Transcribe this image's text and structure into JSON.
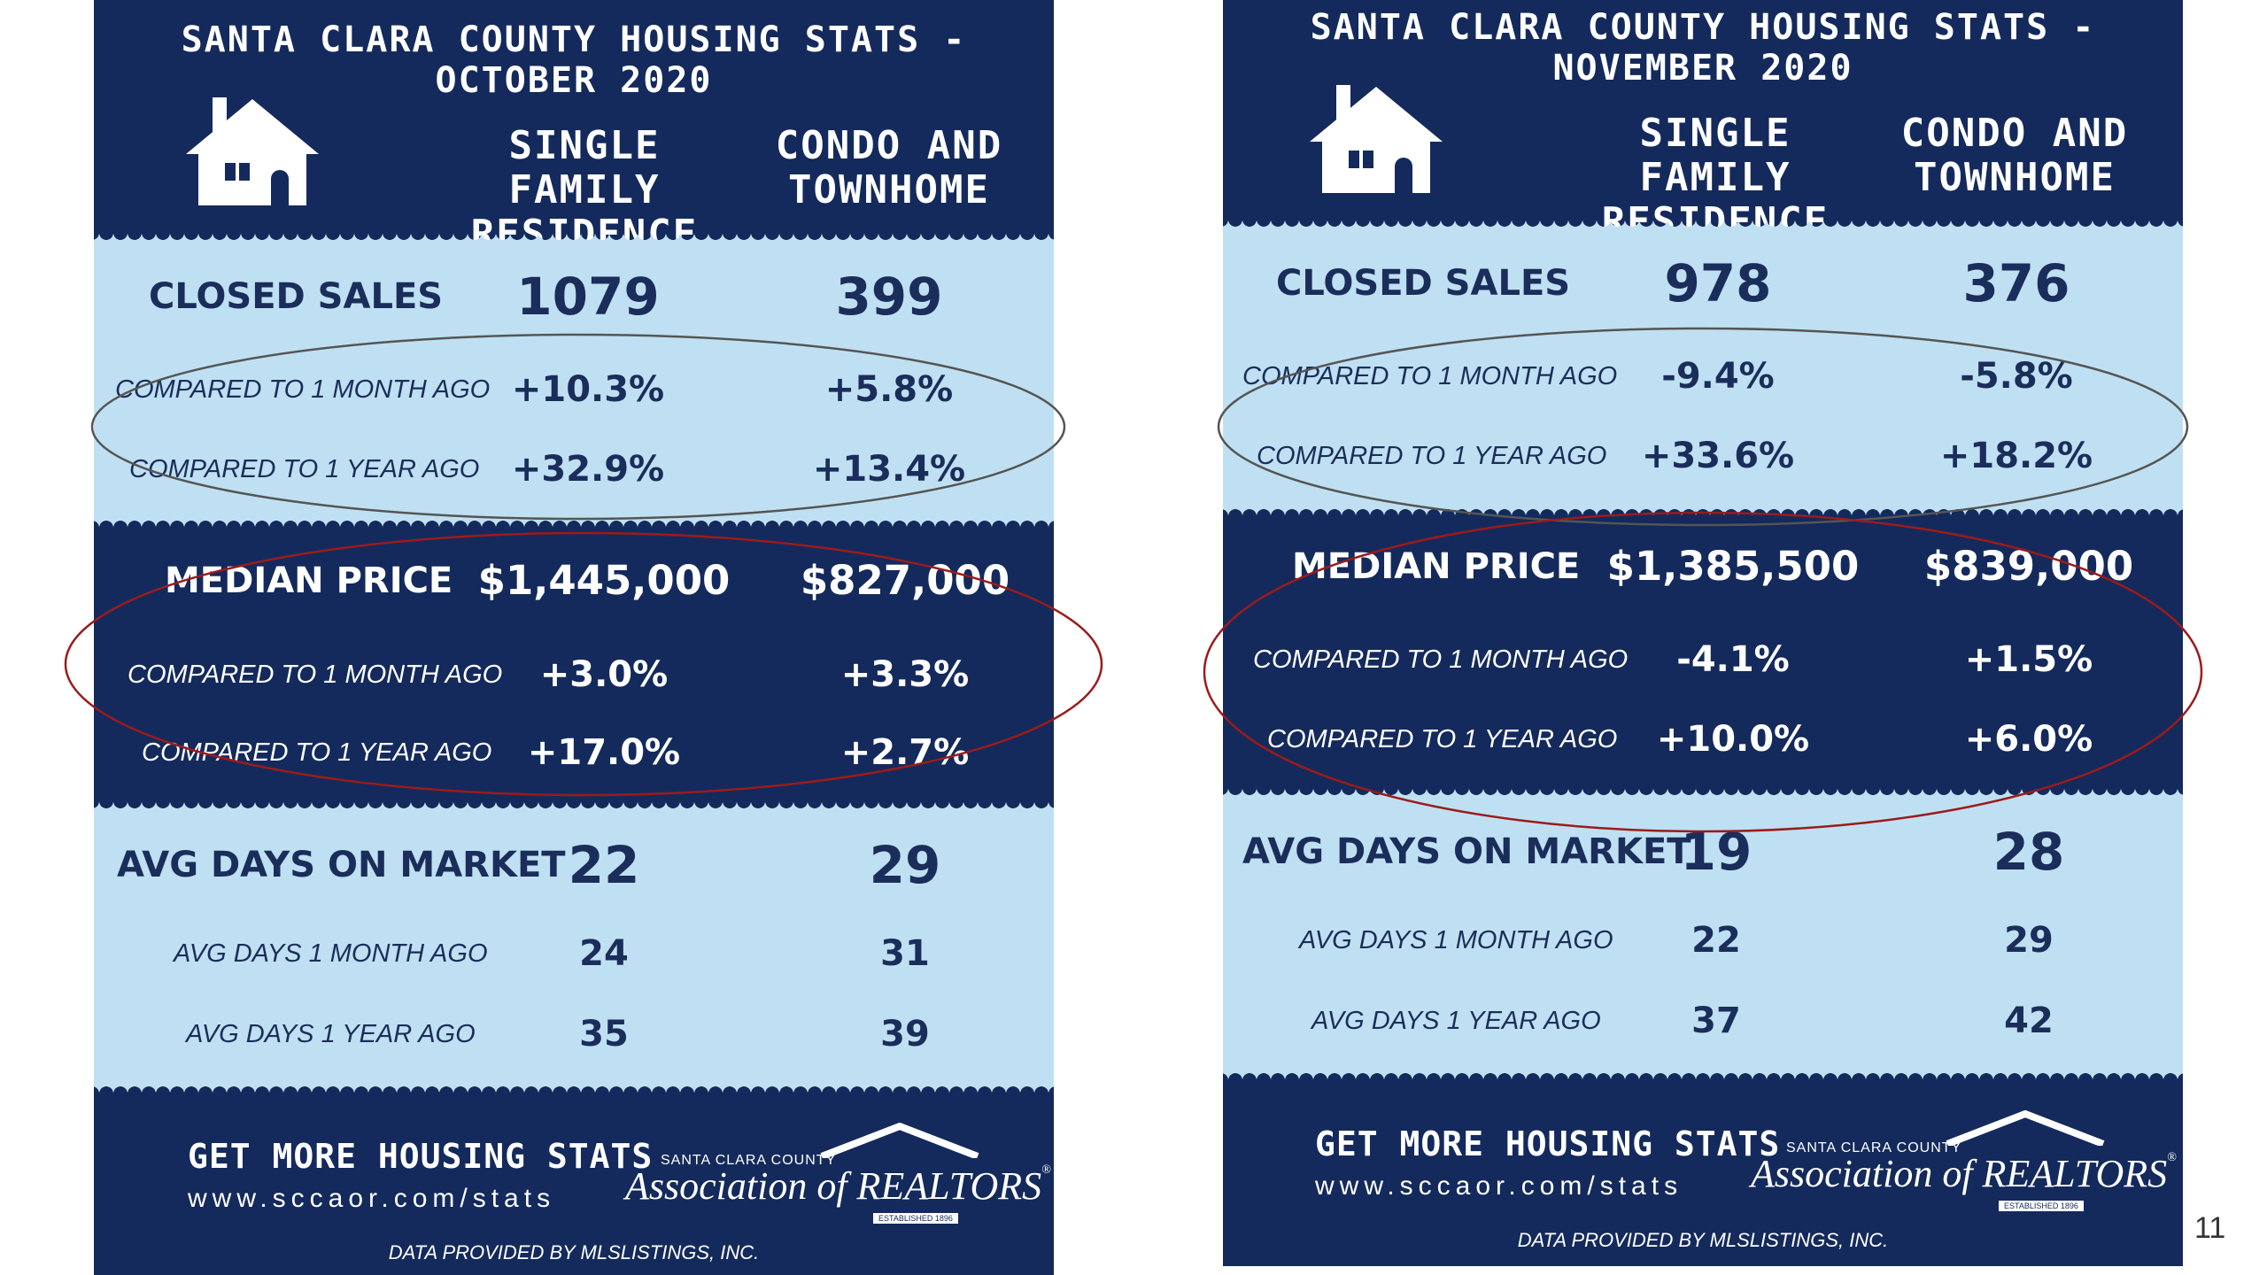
{
  "october": {
    "title": "SANTA CLARA COUNTY HOUSING STATS - OCTOBER 2020",
    "col_sfr": "SINGLE FAMILY\nRESIDENCE",
    "col_condo": "CONDO AND\nTOWNHOME",
    "closed_sales": {
      "label": "CLOSED SALES",
      "sfr": "1079",
      "condo": "399"
    },
    "closed_month": {
      "label": "COMPARED TO 1 MONTH AGO",
      "sfr": "+10.3%",
      "condo": "+5.8%"
    },
    "closed_year": {
      "label": "COMPARED TO 1 YEAR AGO",
      "sfr": "+32.9%",
      "condo": "+13.4%"
    },
    "median_price": {
      "label": "MEDIAN PRICE",
      "sfr": "$1,445,000",
      "condo": "$827,000"
    },
    "median_month": {
      "label": "COMPARED TO 1 MONTH AGO",
      "sfr": "+3.0%",
      "condo": "+3.3%"
    },
    "median_year": {
      "label": "COMPARED TO 1 YEAR AGO",
      "sfr": "+17.0%",
      "condo": "+2.7%"
    },
    "days": {
      "label": "AVG DAYS ON MARKET",
      "sfr": "22",
      "condo": "29"
    },
    "days_month": {
      "label": "AVG DAYS 1 MONTH AGO",
      "sfr": "24",
      "condo": "31"
    },
    "days_year": {
      "label": "AVG DAYS 1 YEAR AGO",
      "sfr": "35",
      "condo": "39"
    }
  },
  "november": {
    "title": "SANTA CLARA COUNTY HOUSING STATS - NOVEMBER 2020",
    "col_sfr": "SINGLE FAMILY\nRESIDENCE",
    "col_condo": "CONDO AND\nTOWNHOME",
    "closed_sales": {
      "label": "CLOSED SALES",
      "sfr": "978",
      "condo": "376"
    },
    "closed_month": {
      "label": "COMPARED TO 1 MONTH AGO",
      "sfr": "-9.4%",
      "condo": "-5.8%"
    },
    "closed_year": {
      "label": "COMPARED TO 1 YEAR AGO",
      "sfr": "+33.6%",
      "condo": "+18.2%"
    },
    "median_price": {
      "label": "MEDIAN PRICE",
      "sfr": "$1,385,500",
      "condo": "$839,000"
    },
    "median_month": {
      "label": "COMPARED TO 1 MONTH AGO",
      "sfr": "-4.1%",
      "condo": "+1.5%"
    },
    "median_year": {
      "label": "COMPARED TO 1 YEAR AGO",
      "sfr": "+10.0%",
      "condo": "+6.0%"
    },
    "days": {
      "label": "AVG DAYS ON MARKET",
      "sfr": "19",
      "condo": "28"
    },
    "days_month": {
      "label": "AVG DAYS 1 MONTH AGO",
      "sfr": "22",
      "condo": "29"
    },
    "days_year": {
      "label": "AVG DAYS 1 YEAR AGO",
      "sfr": "37",
      "condo": "42"
    }
  },
  "footer": {
    "cta": "GET MORE HOUSING STATS",
    "url": "www.sccaor.com/stats",
    "note": "DATA PROVIDED BY MLSLISTINGS, INC.",
    "logo_small": "SANTA CLARA COUNTY",
    "logo_big": "Association of REALTORS",
    "logo_registered": "®",
    "logo_est": "ESTABLISHED 1896"
  },
  "page_number": "11",
  "colors": {
    "navy": "#142a5c",
    "light_blue": "#bfe0f2",
    "ellipse_gray": "#555555",
    "ellipse_red": "#9b1b1b"
  }
}
